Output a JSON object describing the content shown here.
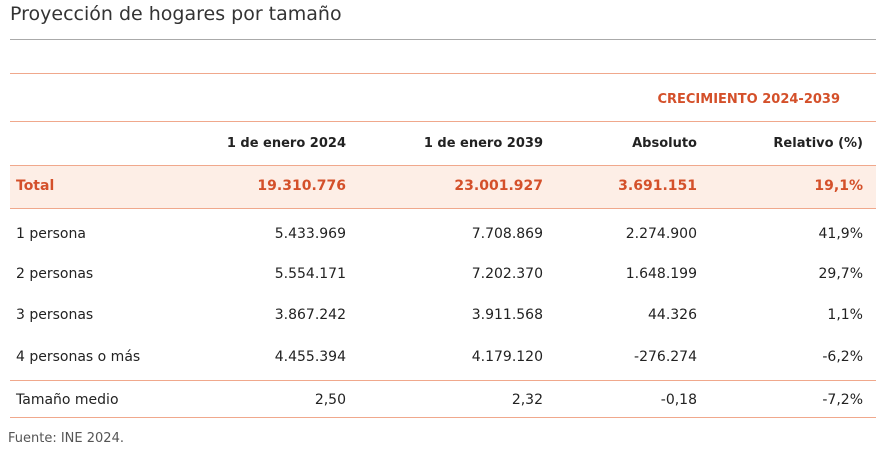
{
  "title": "Proyección de hogares por tamaño",
  "group_header": "CRECIMIENTO 2024-2039",
  "columns": [
    "",
    "1 de enero 2024",
    "1 de enero 2039",
    "Absoluto",
    "Relativo (%)"
  ],
  "rows": [
    [
      "Total",
      "19.310.776",
      "23.001.927",
      "3.691.151",
      "19,1%"
    ],
    [
      "1 persona",
      "5.433.969",
      "7.708.869",
      "2.274.900",
      "41,9%"
    ],
    [
      "2 personas",
      "5.554.171",
      "7.202.370",
      "1.648.199",
      "29,7%"
    ],
    [
      "3 personas",
      "3.867.242",
      "3.911.568",
      "44.326",
      "1,1%"
    ],
    [
      "4 personas o más",
      "4.455.394",
      "4.179.120",
      "-276.274",
      "-6,2%"
    ],
    [
      "Tamaño medio",
      "2,50",
      "2,32",
      "-0,18",
      "-7,2%"
    ]
  ],
  "source": "Fuente: INE 2024.",
  "colors": {
    "accent": "#d4502a",
    "rule": "#f0a88c",
    "highlight": "#fdeee6"
  }
}
